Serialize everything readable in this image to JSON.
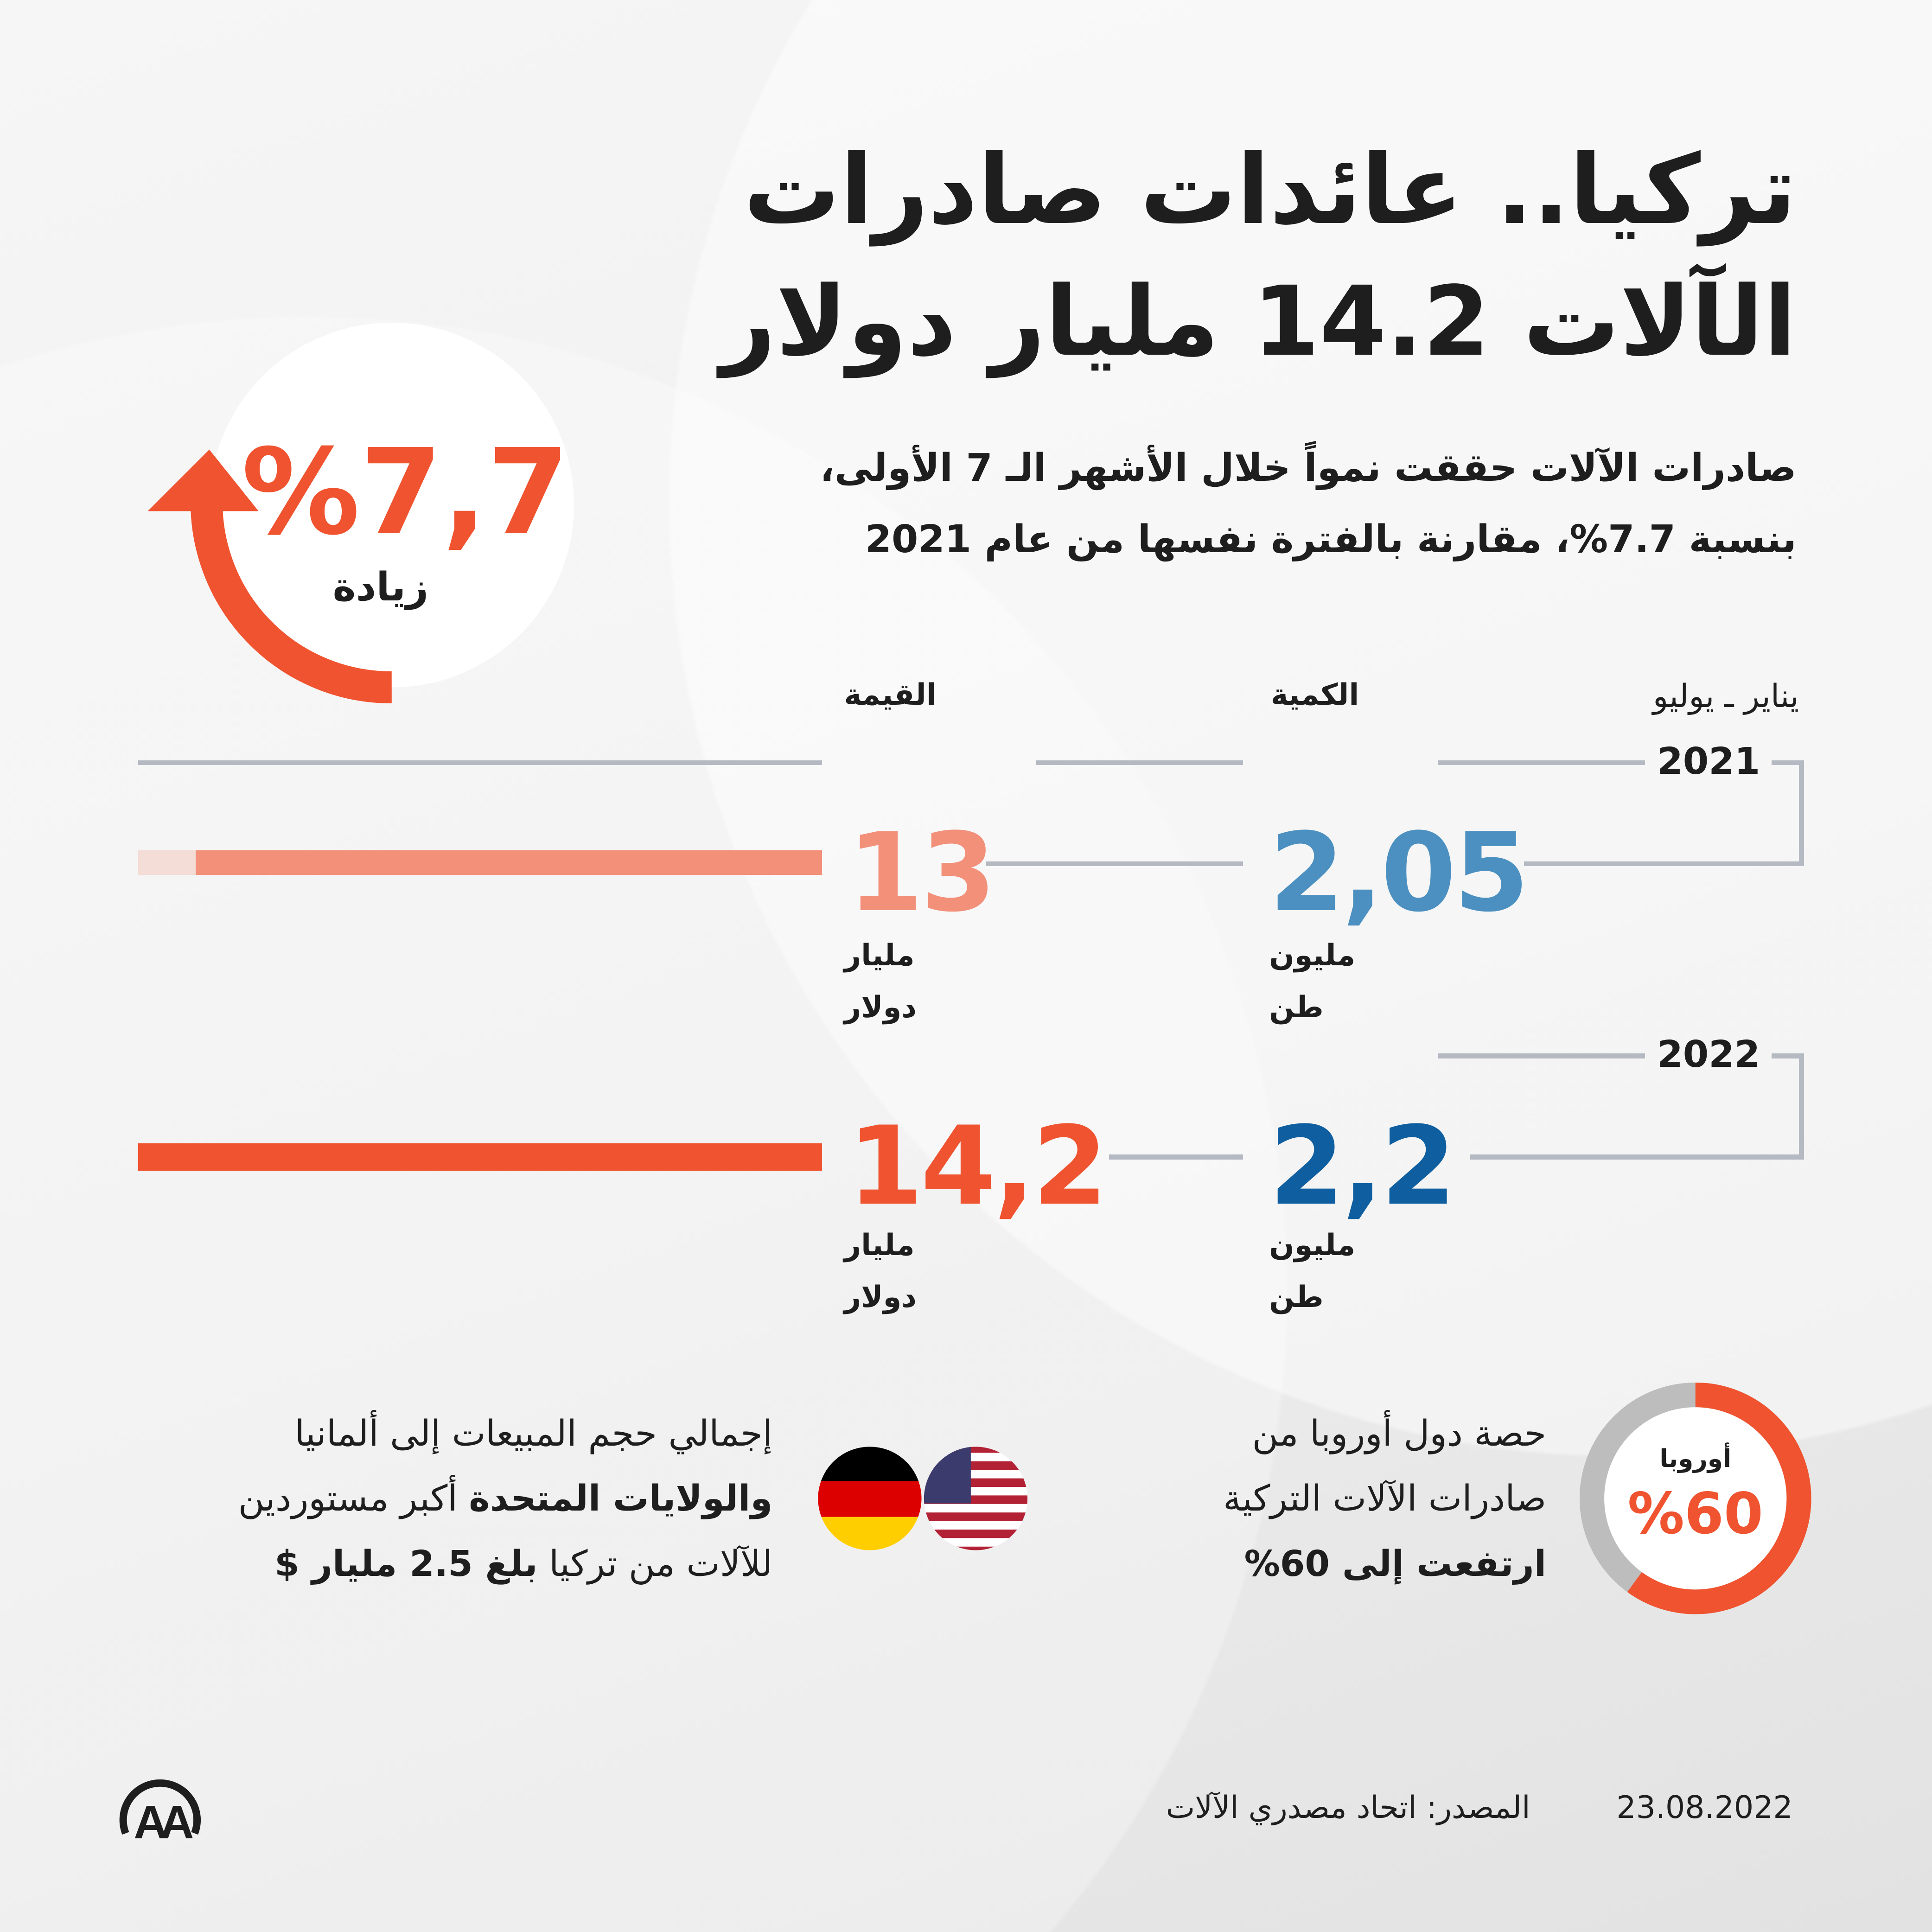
{
  "title": {
    "line1": "تركيا.. عائدات صادرات",
    "line2": "الآلات 14.2 مليار دولار"
  },
  "subtitle": {
    "line1": "صادرات الآلات حققت نمواً خلال الأشهر الـ 7 الأولى،",
    "line2": "بنسبة 7.7%، مقارنة بالفترة نفسها من عام 2021"
  },
  "badge": {
    "value": "%7,7",
    "label": "زيادة"
  },
  "headers": {
    "period": "يناير ـ يوليو",
    "quantity": "الكمية",
    "value": "القيمة"
  },
  "colors": {
    "accent": "#f0532f",
    "accent_light": "#f2907a",
    "blue_2021": "#4b90c0",
    "blue_2022": "#0f5fa0",
    "gray": "#b4b9c2"
  },
  "chart_data": {
    "type": "bar",
    "title": "يناير ـ يوليو",
    "categories": [
      "2021",
      "2022"
    ],
    "series": [
      {
        "name": "القيمة",
        "unit": "مليار دولار",
        "values": [
          13,
          14.2
        ],
        "labels": [
          "13",
          "14,2"
        ]
      },
      {
        "name": "الكمية",
        "unit": "مليون طن",
        "values": [
          2.05,
          2.2
        ],
        "labels": [
          "2,05",
          "2,2"
        ]
      }
    ]
  },
  "rows": [
    {
      "year": "2021",
      "value_label": "13",
      "value_unit1": "مليار",
      "value_unit2": "دولار",
      "qty_label": "2,05",
      "qty_unit1": "مليون",
      "qty_unit2": "طن"
    },
    {
      "year": "2022",
      "value_label": "14,2",
      "value_unit1": "مليار",
      "value_unit2": "دولار",
      "qty_label": "2,2",
      "qty_unit1": "مليون",
      "qty_unit2": "طن"
    }
  ],
  "europe": {
    "percent": 60,
    "donut_label": "أوروبا",
    "donut_value": "%60",
    "line1": "حصة دول أوروبا من",
    "line2": "صادرات الآلات التركية",
    "line3": "ارتفعت إلى 60%"
  },
  "importers": {
    "line1": "إجمالي حجم المبيعات إلى ألمانيا",
    "line2_bold": "والولايات المتحدة",
    "line2_rest": " أكبر مستوردين",
    "line3_rest": "للآلات من تركيا ",
    "line3_bold": "بلغ 2.5 مليار $",
    "flags": [
      "us-flag",
      "germany-flag"
    ]
  },
  "footer": {
    "date": "23.08.2022",
    "source": "المصدر: اتحاد مصدري الآلات",
    "logo": "AA"
  }
}
